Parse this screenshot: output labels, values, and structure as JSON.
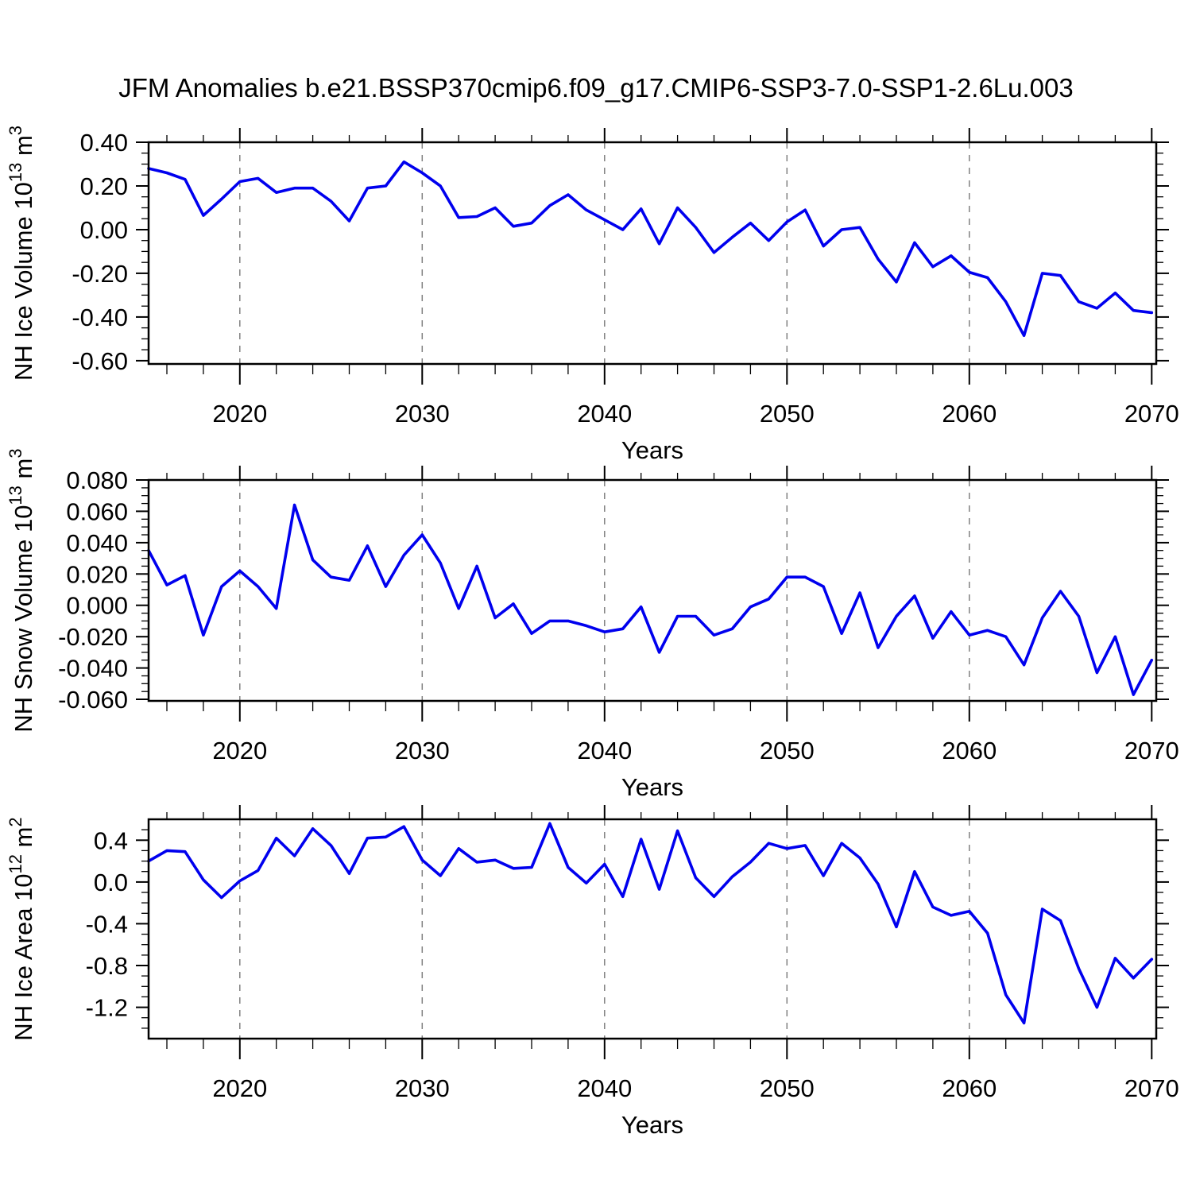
{
  "title": "JFM Anomalies b.e21.BSSP370cmip6.f09_g17.CMIP6-SSP3-7.0-SSP1-2.6Lu.003",
  "colors": {
    "line": "#0000EE",
    "grid": "#808080",
    "frame": "#000000",
    "background": "#FFFFFF",
    "text": "#000000"
  },
  "x_axis": {
    "label": "Years",
    "range": [
      2015,
      2070.25
    ],
    "major_ticks": [
      2020,
      2030,
      2040,
      2050,
      2060,
      2070
    ],
    "minor_tick_step": 2,
    "grid_years": [
      2020,
      2030,
      2040,
      2050,
      2060
    ],
    "years": [
      2015,
      2016,
      2017,
      2018,
      2019,
      2020,
      2021,
      2022,
      2023,
      2024,
      2025,
      2026,
      2027,
      2028,
      2029,
      2030,
      2031,
      2032,
      2033,
      2034,
      2035,
      2036,
      2037,
      2038,
      2039,
      2040,
      2041,
      2042,
      2043,
      2044,
      2045,
      2046,
      2047,
      2048,
      2049,
      2050,
      2051,
      2052,
      2053,
      2054,
      2055,
      2056,
      2057,
      2058,
      2059,
      2060,
      2061,
      2062,
      2063,
      2064,
      2065,
      2066,
      2067,
      2068,
      2069,
      2070
    ]
  },
  "chart_data": [
    {
      "type": "line",
      "name": "nh-ice-volume",
      "ylabel_text": "NH Ice Volume 10^13 m^3",
      "ylabel_segments": [
        {
          "text": "NH Ice Volume 10",
          "sup": false
        },
        {
          "text": "13",
          "sup": true
        },
        {
          "text": " m",
          "sup": false
        },
        {
          "text": "3",
          "sup": true
        }
      ],
      "ylim": [
        0.4,
        -0.615
      ],
      "ytick_values": [
        0.4,
        0.2,
        0.0,
        -0.2,
        -0.4,
        -0.6
      ],
      "ytick_labels": [
        "0.40",
        "0.20",
        "0.00",
        "-0.20",
        "-0.40",
        "-0.60"
      ],
      "yminor_step": 0.05,
      "values": [
        0.28,
        0.26,
        0.23,
        0.065,
        0.14,
        0.22,
        0.235,
        0.17,
        0.19,
        0.19,
        0.13,
        0.04,
        0.19,
        0.2,
        0.31,
        0.26,
        0.2,
        0.055,
        0.06,
        0.1,
        0.015,
        0.03,
        0.11,
        0.16,
        0.09,
        0.045,
        0.0,
        0.095,
        -0.065,
        0.1,
        0.01,
        -0.105,
        -0.035,
        0.03,
        -0.05,
        0.035,
        0.09,
        -0.075,
        0.0,
        0.01,
        -0.135,
        -0.24,
        -0.06,
        -0.17,
        -0.12,
        -0.195,
        -0.22,
        -0.33,
        -0.485,
        -0.2,
        -0.21,
        -0.33,
        -0.36,
        -0.29,
        -0.37,
        -0.38
      ]
    },
    {
      "type": "line",
      "name": "nh-snow-volume",
      "ylabel_text": "NH Snow Volume 10^13 m^3",
      "ylabel_segments": [
        {
          "text": "NH Snow Volume 10",
          "sup": false
        },
        {
          "text": "13",
          "sup": true
        },
        {
          "text": " m",
          "sup": false
        },
        {
          "text": "3",
          "sup": true
        }
      ],
      "ylim": [
        0.08,
        -0.061
      ],
      "ytick_values": [
        0.08,
        0.06,
        0.04,
        0.02,
        0.0,
        -0.02,
        -0.04,
        -0.06
      ],
      "ytick_labels": [
        "0.080",
        "0.060",
        "0.040",
        "0.020",
        "0.000",
        "-0.020",
        "-0.040",
        "-0.060"
      ],
      "yminor_step": 0.005,
      "values": [
        0.035,
        0.013,
        0.019,
        -0.019,
        0.012,
        0.022,
        0.012,
        -0.002,
        0.064,
        0.029,
        0.018,
        0.016,
        0.038,
        0.012,
        0.032,
        0.045,
        0.027,
        -0.002,
        0.025,
        -0.008,
        0.001,
        -0.018,
        -0.01,
        -0.01,
        -0.013,
        -0.017,
        -0.015,
        -0.001,
        -0.03,
        -0.007,
        -0.007,
        -0.019,
        -0.015,
        -0.001,
        0.004,
        0.018,
        0.018,
        0.012,
        -0.018,
        0.008,
        -0.027,
        -0.007,
        0.006,
        -0.021,
        -0.004,
        -0.019,
        -0.016,
        -0.02,
        -0.038,
        -0.008,
        0.009,
        -0.007,
        -0.043,
        -0.02,
        -0.057,
        -0.035
      ]
    },
    {
      "type": "line",
      "name": "nh-ice-area",
      "ylabel_text": "NH Ice Area 10^12 m^2",
      "ylabel_segments": [
        {
          "text": "NH Ice Area 10",
          "sup": false
        },
        {
          "text": "12",
          "sup": true
        },
        {
          "text": " m",
          "sup": false
        },
        {
          "text": "2",
          "sup": true
        }
      ],
      "ylim": [
        0.6,
        -1.5
      ],
      "ytick_values": [
        0.4,
        0.0,
        -0.4,
        -0.8,
        -1.2
      ],
      "ytick_labels": [
        "0.4",
        "0.0",
        "-0.4",
        "-0.8",
        "-1.2"
      ],
      "yminor_step": 0.1,
      "values": [
        0.2,
        0.3,
        0.29,
        0.02,
        -0.15,
        0.01,
        0.11,
        0.42,
        0.25,
        0.51,
        0.35,
        0.08,
        0.42,
        0.43,
        0.53,
        0.21,
        0.06,
        0.32,
        0.19,
        0.21,
        0.13,
        0.14,
        0.56,
        0.14,
        -0.01,
        0.17,
        -0.14,
        0.41,
        -0.07,
        0.49,
        0.04,
        -0.14,
        0.05,
        0.19,
        0.37,
        0.32,
        0.35,
        0.06,
        0.37,
        0.23,
        -0.02,
        -0.43,
        0.1,
        -0.24,
        -0.32,
        -0.28,
        -0.49,
        -1.08,
        -1.35,
        -0.26,
        -0.37,
        -0.83,
        -1.2,
        -0.73,
        -0.92,
        -0.74
      ]
    }
  ]
}
